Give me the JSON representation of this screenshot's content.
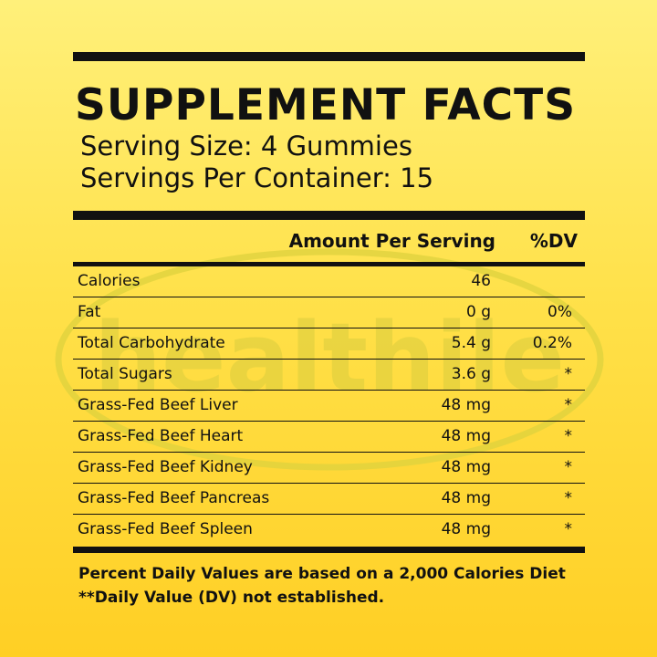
{
  "panel": {
    "title": "SUPPLEMENT FACTS",
    "serving_size": "Serving Size: 4 Gummies",
    "servings_per_container": "Servings Per Container: 15"
  },
  "table": {
    "headers": {
      "amount": "Amount Per Serving",
      "dv": "%DV"
    },
    "rows": [
      {
        "name": "Calories",
        "amount": "46",
        "dv": ""
      },
      {
        "name": "Fat",
        "amount": "0 g",
        "dv": "0%"
      },
      {
        "name": "Total Carbohydrate",
        "amount": "5.4 g",
        "dv": "0.2%"
      },
      {
        "name": "Total Sugars",
        "amount": "3.6 g",
        "dv": "*"
      },
      {
        "name": "Grass-Fed Beef Liver",
        "amount": "48 mg",
        "dv": "*"
      },
      {
        "name": "Grass-Fed Beef Heart",
        "amount": "48 mg",
        "dv": "*"
      },
      {
        "name": "Grass-Fed Beef Kidney",
        "amount": "48 mg",
        "dv": "*"
      },
      {
        "name": "Grass-Fed Beef Pancreas",
        "amount": "48 mg",
        "dv": "*"
      },
      {
        "name": "Grass-Fed Beef Spleen",
        "amount": "48 mg",
        "dv": "*"
      }
    ]
  },
  "footer": {
    "line1": "Percent Daily Values are based on a 2,000 Calories Diet",
    "line2": "**Daily Value (DV) not established."
  },
  "watermark": {
    "text": "healthile",
    "color": "#D8CC3A"
  }
}
